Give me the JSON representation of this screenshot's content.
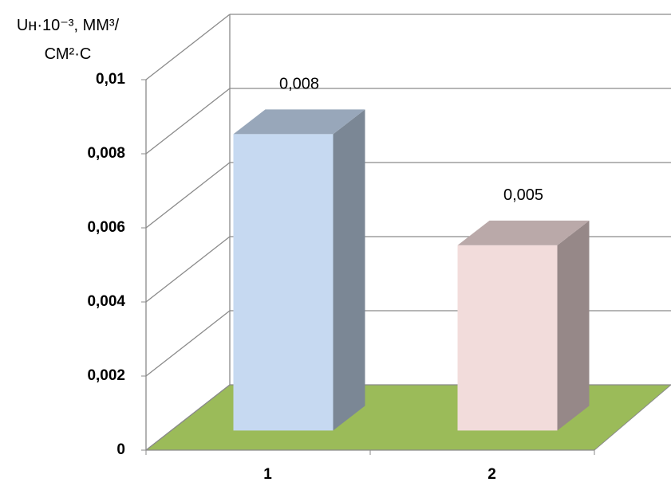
{
  "chart_data": {
    "type": "bar",
    "y_label": "Uн·10⁻³, ММ³/СМ²·С",
    "categories": [
      "1",
      "2"
    ],
    "values": [
      0.008,
      0.005
    ],
    "value_labels": [
      "0,008",
      "0,005"
    ],
    "colors": [
      "#c6d9f1",
      "#f2dcdb"
    ],
    "floor_color": "#9bbb59",
    "ylim": [
      0,
      0.01
    ],
    "yticks": [
      0,
      {
        "value": 0.002,
        "label": "0,002"
      },
      {
        "value": 0.004,
        "label": "0,004"
      },
      {
        "value": 0.006,
        "label": "0,006"
      },
      {
        "value": 0.008,
        "label": "0,008"
      },
      {
        "value": 0.01,
        "label": "0,01"
      }
    ],
    "grid": true
  }
}
